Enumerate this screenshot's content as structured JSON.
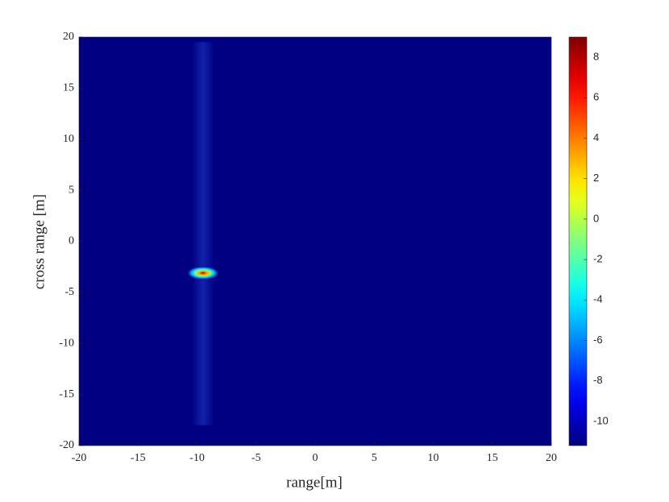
{
  "chart_data": {
    "type": "heatmap",
    "xlabel": "range[m]",
    "ylabel": "cross range [m]",
    "xlim": [
      -20,
      20
    ],
    "ylim": [
      -20,
      20
    ],
    "xticks": [
      -20,
      -15,
      -10,
      -5,
      0,
      5,
      10,
      15,
      20
    ],
    "yticks": [
      -20,
      -15,
      -10,
      -5,
      0,
      5,
      10,
      15,
      20
    ],
    "clim": [
      -11.2,
      9
    ],
    "cticks": [
      -10,
      -8,
      -6,
      -4,
      -2,
      0,
      2,
      4,
      6,
      8
    ],
    "colormap": "jet",
    "x": [
      -9.5
    ],
    "y": [
      -3.1
    ],
    "values": [
      8.8
    ]
  }
}
